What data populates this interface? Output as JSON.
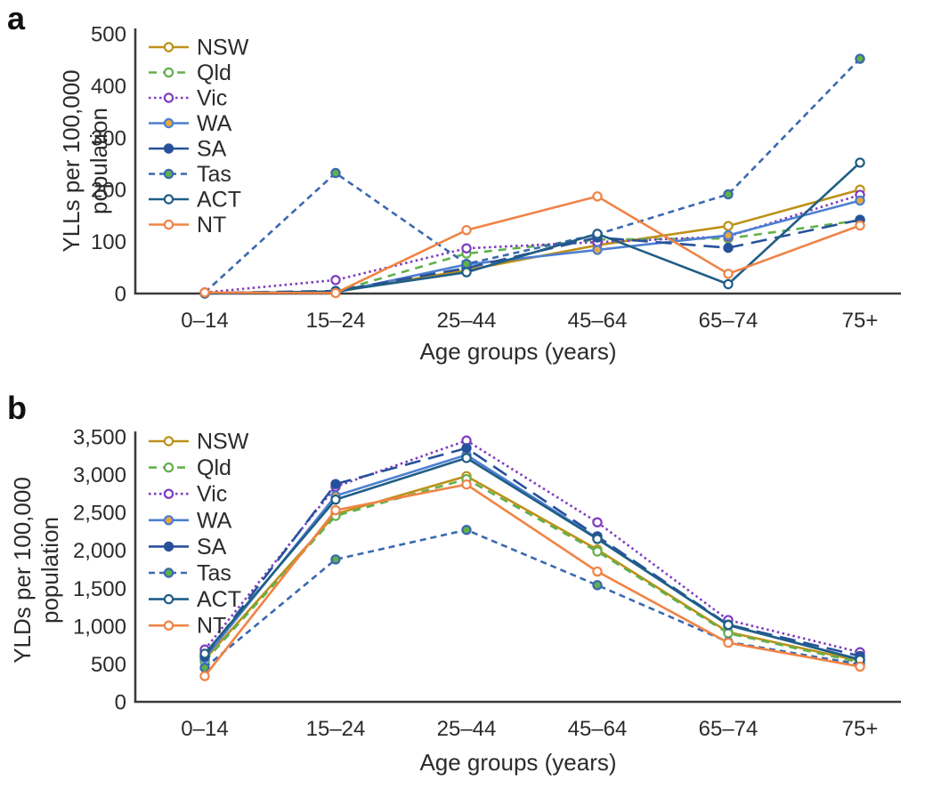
{
  "panels": [
    {
      "letter": "a",
      "ylabel_line1": "YLLs per 100,000",
      "ylabel_line2": "population",
      "xlabel": "Age groups (years)"
    },
    {
      "letter": "b",
      "ylabel_line1": "YLDs per 100,000",
      "ylabel_line2": "population",
      "xlabel": "Age groups (years)"
    }
  ],
  "text_color": "#2b2b2b",
  "axis_color": "#3a3a3a",
  "chart_data": [
    {
      "panel": "a",
      "type": "line",
      "title": "",
      "xlabel": "Age groups (years)",
      "ylabel": "YLLs per 100,000 population",
      "categories": [
        "0–14",
        "15–24",
        "25–44",
        "45–64",
        "65–74",
        "75+"
      ],
      "ylim": [
        0,
        500
      ],
      "ytick_values": [
        0,
        100,
        200,
        300,
        400,
        500
      ],
      "yticks": [
        "0",
        "100",
        "200",
        "300",
        "400",
        "500"
      ],
      "grid": false,
      "legend_position": "top-left",
      "series": [
        {
          "name": "NSW",
          "color": "#BD9118",
          "line_style": "solid",
          "marker_fill": "#ffffff",
          "values": [
            1,
            3,
            45,
            93,
            130,
            200
          ]
        },
        {
          "name": "Qld",
          "color": "#61B04C",
          "line_style": "dashed",
          "marker_fill": "#ffffff",
          "values": [
            1,
            4,
            77,
            104,
            106,
            141
          ]
        },
        {
          "name": "Vic",
          "color": "#7E3CC0",
          "line_style": "dotted",
          "marker_fill": "#ffffff",
          "values": [
            2,
            26,
            87,
            99,
            110,
            190
          ]
        },
        {
          "name": "WA",
          "color": "#4D7FD1",
          "line_style": "solid",
          "marker_fill": "#E9A83C",
          "values": [
            1,
            2,
            56,
            84,
            112,
            179
          ]
        },
        {
          "name": "SA",
          "color": "#27519B",
          "line_style": "longdash",
          "marker_fill": "#27519B",
          "values": [
            1,
            5,
            49,
            108,
            88,
            142
          ]
        },
        {
          "name": "Tas",
          "color": "#3A69B0",
          "line_style": "shortdash",
          "marker_fill": "#61B04C",
          "values": [
            2,
            232,
            57,
            114,
            191,
            452
          ]
        },
        {
          "name": "ACT",
          "color": "#1F5E85",
          "line_style": "solid",
          "marker_fill": "#ffffff",
          "values": [
            0,
            4,
            41,
            115,
            18,
            252
          ]
        },
        {
          "name": "NT",
          "color": "#F08345",
          "line_style": "solid",
          "marker_fill": "#ffffff",
          "values": [
            2,
            1,
            122,
            187,
            38,
            131
          ]
        }
      ]
    },
    {
      "panel": "b",
      "type": "line",
      "title": "",
      "xlabel": "Age groups (years)",
      "ylabel": "YLDs per 100,000 population",
      "categories": [
        "0–14",
        "15–24",
        "25–44",
        "45–64",
        "65–74",
        "75+"
      ],
      "ylim": [
        0,
        3500
      ],
      "ytick_values": [
        0,
        500,
        1000,
        1500,
        2000,
        2500,
        3000,
        3500
      ],
      "yticks": [
        "0",
        "500",
        "1,000",
        "1,500",
        "2,000",
        "2,500",
        "3,000",
        "3,500"
      ],
      "grid": false,
      "legend_position": "top-left",
      "series": [
        {
          "name": "NSW",
          "color": "#BD9118",
          "line_style": "solid",
          "marker_fill": "#ffffff",
          "values": [
            560,
            2480,
            2980,
            2010,
            920,
            540
          ]
        },
        {
          "name": "Qld",
          "color": "#61B04C",
          "line_style": "dashed",
          "marker_fill": "#ffffff",
          "values": [
            535,
            2455,
            2940,
            1985,
            905,
            520
          ]
        },
        {
          "name": "Vic",
          "color": "#7E3CC0",
          "line_style": "dotted",
          "marker_fill": "#ffffff",
          "values": [
            690,
            2840,
            3450,
            2370,
            1080,
            655
          ]
        },
        {
          "name": "WA",
          "color": "#4D7FD1",
          "line_style": "solid",
          "marker_fill": "#E9A83C",
          "values": [
            580,
            2720,
            3260,
            2160,
            1010,
            560
          ]
        },
        {
          "name": "SA",
          "color": "#27519B",
          "line_style": "longdash",
          "marker_fill": "#27519B",
          "values": [
            600,
            2875,
            3350,
            2185,
            1020,
            605
          ]
        },
        {
          "name": "Tas",
          "color": "#3A69B0",
          "line_style": "shortdash",
          "marker_fill": "#61B04C",
          "values": [
            450,
            1880,
            2270,
            1540,
            790,
            495
          ]
        },
        {
          "name": "ACT",
          "color": "#1F5E85",
          "line_style": "solid",
          "marker_fill": "#ffffff",
          "values": [
            635,
            2670,
            3220,
            2150,
            1015,
            555
          ]
        },
        {
          "name": "NT",
          "color": "#F08345",
          "line_style": "solid",
          "marker_fill": "#ffffff",
          "values": [
            340,
            2530,
            2870,
            1720,
            780,
            465
          ]
        }
      ]
    }
  ]
}
